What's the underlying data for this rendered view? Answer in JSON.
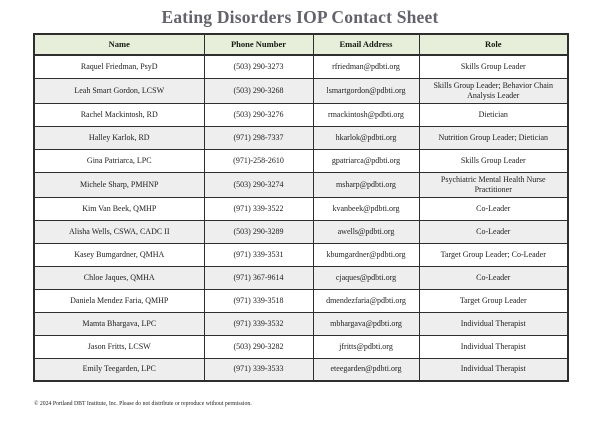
{
  "title": "Eating Disorders IOP Contact Sheet",
  "table": {
    "headers": [
      "Name",
      "Phone Number",
      "Email Address",
      "Role"
    ],
    "rows": [
      {
        "name": "Raquel Friedman, PsyD",
        "phone": "(503) 290-3273",
        "email": "rfriedman@pdbti.org",
        "role": "Skills Group Leader"
      },
      {
        "name": "Leah Smart Gordon, LCSW",
        "phone": "(503) 290-3268",
        "email": "lsmartgordon@pdbti.org",
        "role": "Skills Group Leader; Behavior Chain Analysis Leader"
      },
      {
        "name": "Rachel Mackintosh, RD",
        "phone": "(503) 290-3276",
        "email": "rmackintosh@pdbti.org",
        "role": "Dietician"
      },
      {
        "name": "Halley Karlok, RD",
        "phone": "(971) 298-7337",
        "email": "hkarlok@pdbti.org",
        "role": "Nutrition Group Leader; Dietician"
      },
      {
        "name": "Gina Patriarca, LPC",
        "phone": "(971)-258-2610",
        "email": "gpatriarca@pdbti.org",
        "role": "Skills Group Leader"
      },
      {
        "name": "Michele Sharp, PMHNP",
        "phone": "(503) 290-3274",
        "email": "msharp@pdbti.org",
        "role": "Psychiatric Mental Health Nurse Practitioner"
      },
      {
        "name": "Kim Van Beek, QMHP",
        "phone": "(971) 339-3522",
        "email": "kvanbeek@pdbti.org",
        "role": "Co-Leader"
      },
      {
        "name": "Alisha Wells, CSWA, CADC II",
        "phone": "(503) 290-3289",
        "email": "awells@pdbti.org",
        "role": "Co-Leader"
      },
      {
        "name": "Kasey Bumgardner, QMHA",
        "phone": "(971) 339-3531",
        "email": "kbumgardner@pdbti.org",
        "role": "Target Group Leader; Co-Leader"
      },
      {
        "name": "Chloe Jaques, QMHA",
        "phone": "(971) 367-9614",
        "email": "cjaques@pdbti.org",
        "role": "Co-Leader"
      },
      {
        "name": "Daniela Mendez Faria, QMHP",
        "phone": "(971) 339-3518",
        "email": "dmendezfaria@pdbti.org",
        "role": "Target Group Leader"
      },
      {
        "name": "Mamta Bhargava, LPC",
        "phone": "(971) 339-3532",
        "email": "mbhargava@pdbti.org",
        "role": "Individual Therapist"
      },
      {
        "name": "Jason Fritts, LCSW",
        "phone": "(503) 290-3282",
        "email": "jfritts@pdbti.org",
        "role": "Individual Therapist"
      },
      {
        "name": "Emily Teegarden, LPC",
        "phone": "(971) 339-3533",
        "email": "eteegarden@pdbti.org",
        "role": "Individual Therapist"
      }
    ]
  },
  "footer": "© 2024 Portland DBT Institute, Inc. Please do not distribute or reproduce without permission.",
  "colors": {
    "header_bg": "#e7efdb",
    "alt_row_bg": "#eeeeee",
    "border": "#2e2e2e",
    "title_text": "#63636b"
  }
}
